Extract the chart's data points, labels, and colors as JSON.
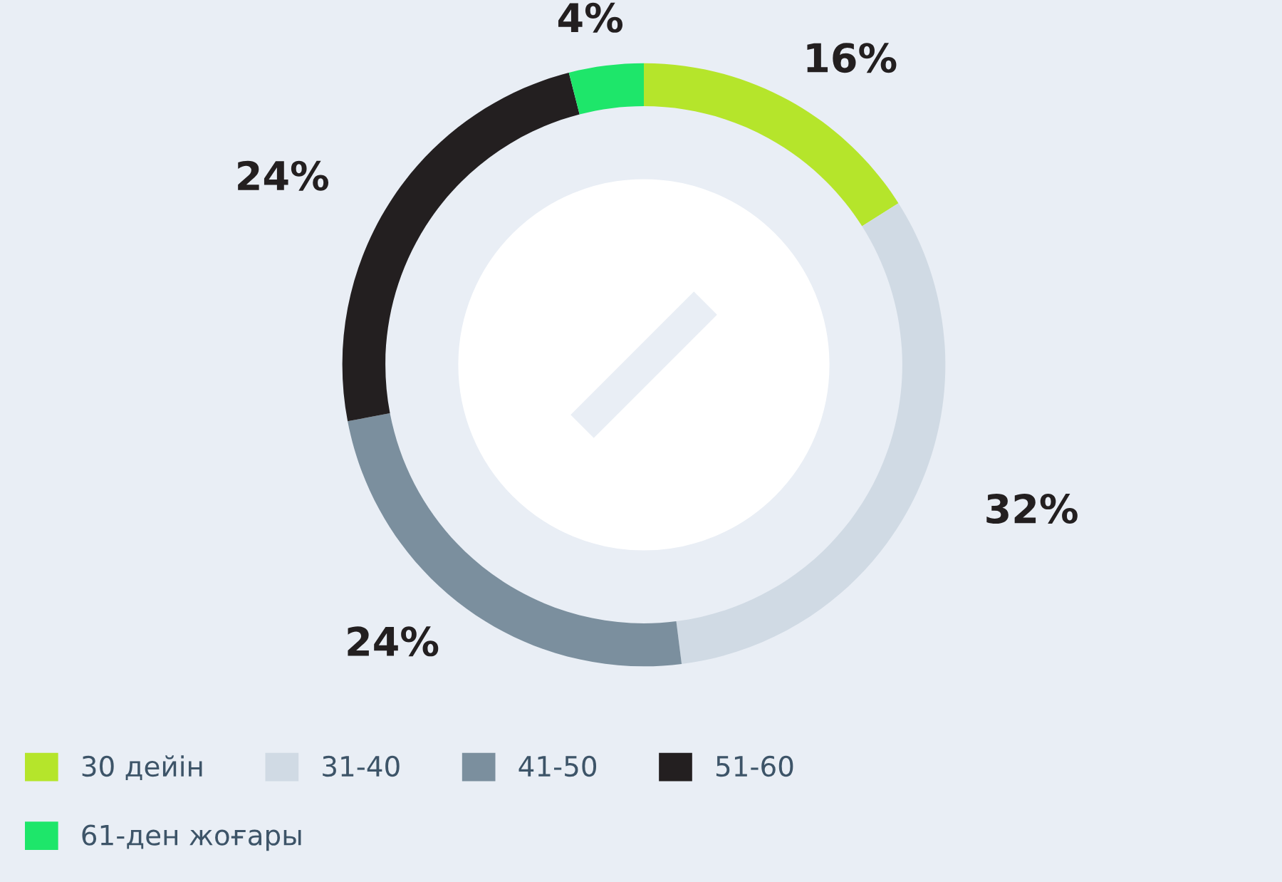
{
  "chart_data": {
    "type": "donut",
    "categories": [
      "30 дейін",
      "31-40",
      "41-50",
      "51-60",
      "61-ден жоғары"
    ],
    "values": [
      16,
      32,
      24,
      24,
      4
    ],
    "colors": [
      "#b5e52b",
      "#d0dae4",
      "#7b8f9e",
      "#231f20",
      "#1ee66a"
    ],
    "value_labels": [
      "16%",
      "32%",
      "24%",
      "24%",
      "4%"
    ],
    "legend": "bottom left"
  }
}
